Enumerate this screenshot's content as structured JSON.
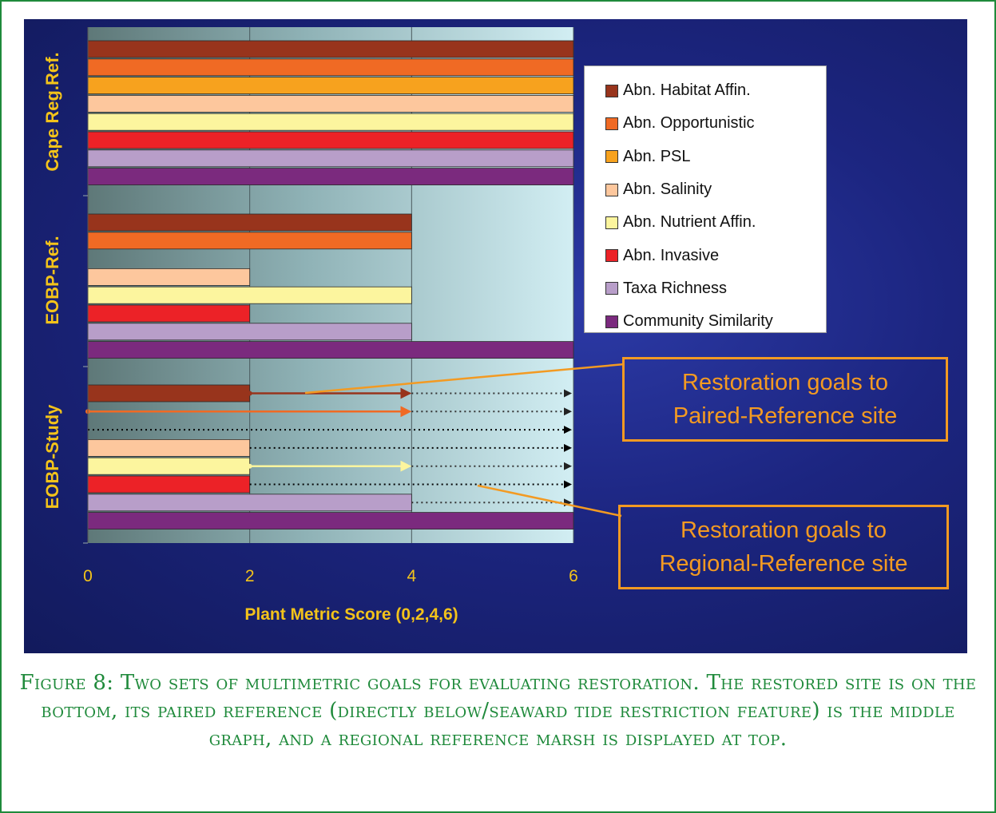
{
  "chart_data": {
    "type": "bar",
    "orientation": "horizontal",
    "xlabel": "Plant Metric Score (0,2,4,6)",
    "xlim": [
      0,
      6
    ],
    "xticks": [
      0,
      2,
      4,
      6
    ],
    "legend_position": "top-right",
    "groups": [
      "Cape Reg.Ref.",
      "EOBP-Ref.",
      "EOBP-Study"
    ],
    "series": [
      {
        "name": "Abn. Habitat Affin.",
        "color": "#98341c",
        "values": [
          6,
          4,
          2
        ]
      },
      {
        "name": "Abn. Opportunistic",
        "color": "#f06a24",
        "values": [
          6,
          4,
          0
        ]
      },
      {
        "name": "Abn. PSL",
        "color": "#f7a21e",
        "values": [
          6,
          0,
          0
        ]
      },
      {
        "name": "Abn. Salinity",
        "color": "#fdc79d",
        "values": [
          6,
          2,
          2
        ]
      },
      {
        "name": "Abn. Nutrient Affin.",
        "color": "#fcf59e",
        "values": [
          6,
          4,
          2
        ]
      },
      {
        "name": "Abn. Invasive",
        "color": "#ec2227",
        "values": [
          6,
          2,
          2
        ]
      },
      {
        "name": "Taxa Richness",
        "color": "#b89ec9",
        "values": [
          6,
          4,
          4
        ]
      },
      {
        "name": "Community Similarity",
        "color": "#7b2a7e",
        "values": [
          6,
          6,
          6
        ]
      }
    ],
    "paired_goal_arrows": [
      {
        "series": "Abn. Habitat Affin.",
        "from": 2,
        "to": 4,
        "color": "#98341c"
      },
      {
        "series": "Abn. Opportunistic",
        "from": 0,
        "to": 4,
        "color": "#f06a24"
      },
      {
        "series": "Abn. Nutrient Affin.",
        "from": 2,
        "to": 4,
        "color": "#fcf59e"
      }
    ],
    "regional_goal_arrows": [
      {
        "series": "Abn. Habitat Affin.",
        "from": 4,
        "to": 6,
        "color": "#333333"
      },
      {
        "series": "Abn. Opportunistic",
        "from": 4,
        "to": 6,
        "color": "#333333"
      },
      {
        "series": "Abn. PSL",
        "from": 0,
        "to": 6,
        "color": "#000000"
      },
      {
        "series": "Abn. Salinity",
        "from": 2,
        "to": 6,
        "color": "#000000"
      },
      {
        "series": "Abn. Nutrient Affin.",
        "from": 4,
        "to": 6,
        "color": "#333333"
      },
      {
        "series": "Abn. Invasive",
        "from": 2,
        "to": 6,
        "color": "#000000"
      },
      {
        "series": "Taxa Richness",
        "from": 4,
        "to": 6,
        "color": "#333333"
      }
    ],
    "annotations": [
      {
        "text_lines": [
          "Restoration goals to",
          "Paired-Reference site"
        ],
        "target_series": "Abn. Habitat Affin."
      },
      {
        "text_lines": [
          "Restoration goals to",
          "Regional-Reference site"
        ],
        "target_series": "Abn. Invasive"
      }
    ],
    "colors": {
      "axis_text": "#f3c31a",
      "callout": "#f39a22",
      "background": "#1c2580"
    }
  },
  "caption": "Figure 8: Two sets of multimetric goals for evaluating restoration. The restored site is on the bottom, its paired reference (directly below/seaward tide restriction feature) is the middle graph, and a regional reference marsh is displayed at top.",
  "colors": {
    "frame": "#1f8a3b",
    "caption": "#1f8a3b"
  }
}
